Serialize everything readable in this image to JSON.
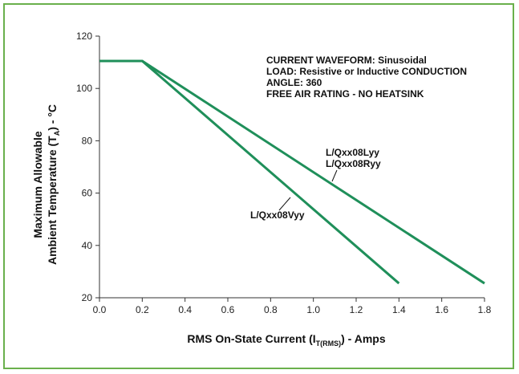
{
  "colors": {
    "frame": "#6ab04c",
    "series": "#1f8f5a",
    "axis": "#333333"
  },
  "chart_data": {
    "type": "line",
    "xlabel": "RMS On-State Current (I",
    "xlabel_sub": "T(RMS)",
    "xlabel_suffix": ") - Amps",
    "ylabel_line1": "Maximum Allowable",
    "ylabel_line2_pre": "Ambient Temperature (T",
    "ylabel_sub": "A",
    "ylabel_line2_post": ") - °C",
    "xlim": [
      0.0,
      1.8
    ],
    "ylim": [
      20,
      120
    ],
    "xticks": [
      "0.0",
      "0.2",
      "0.4",
      "0.6",
      "0.8",
      "1.0",
      "1.2",
      "1.4",
      "1.6",
      "1.8"
    ],
    "yticks": [
      "20",
      "40",
      "60",
      "80",
      "100",
      "120"
    ],
    "annotations": [
      "CURRENT WAVEFORM: Sinusoidal",
      "LOAD: Resistive or Inductive CONDUCTION",
      "ANGLE: 360",
      "FREE AIR RATING  - NO HEATSINK"
    ],
    "series": [
      {
        "labels": [
          "L/Qxx08Lyy",
          "L/Qxx08Ryy"
        ],
        "x": [
          0.0,
          0.2,
          1.8
        ],
        "y": [
          110.5,
          110.5,
          25.5
        ]
      },
      {
        "labels": [
          "L/Qxx08Vyy"
        ],
        "x": [
          0.0,
          0.2,
          1.4
        ],
        "y": [
          110.5,
          110.5,
          25.5
        ]
      }
    ]
  }
}
